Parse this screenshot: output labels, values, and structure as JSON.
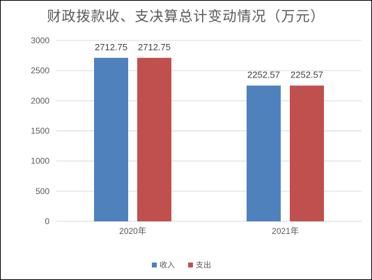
{
  "chart_data": {
    "type": "bar",
    "title": "财政拨款收、支决算总计变动情况（万元）",
    "xlabel": "",
    "ylabel": "",
    "categories": [
      "2020年",
      "2021年"
    ],
    "series": [
      {
        "name": "收入",
        "color": "#4F81BD",
        "values": [
          2712.75,
          2252.57
        ],
        "labels": [
          "2712.75",
          "2252.57"
        ]
      },
      {
        "name": "支出",
        "color": "#C0504D",
        "values": [
          2712.75,
          2252.57
        ],
        "labels": [
          "2712.75",
          "2252.57"
        ]
      }
    ],
    "ylim": [
      0,
      3000
    ],
    "yticks": [
      0,
      500,
      1000,
      1500,
      2000,
      2500,
      3000
    ],
    "grid": true,
    "legend_position": "bottom"
  }
}
